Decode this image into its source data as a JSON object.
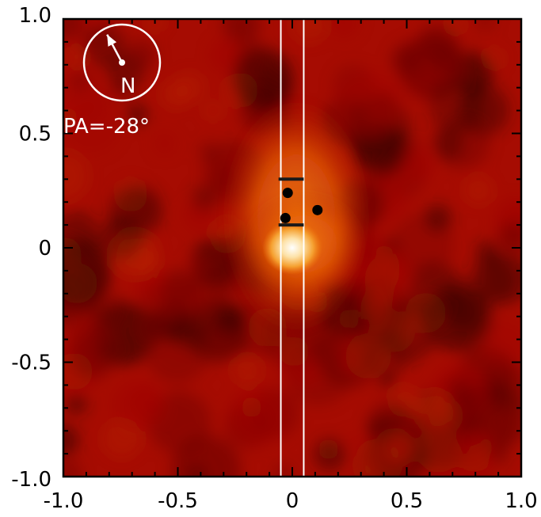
{
  "chart_data": {
    "type": "heatmap",
    "xlim": [
      -1.0,
      1.0
    ],
    "ylim": [
      -1.0,
      1.0
    ],
    "x_ticks": [
      -1.0,
      -0.5,
      0,
      0.5,
      1.0
    ],
    "y_ticks": [
      -1.0,
      -0.5,
      0,
      0.5,
      1.0
    ],
    "x_tick_labels": [
      "-1.0",
      "-0.5",
      "0",
      "0.5",
      "1.0"
    ],
    "y_tick_labels": [
      "-1.0",
      "-0.5",
      "0",
      "0.5",
      "1.0"
    ],
    "colormap": [
      "#2a0000",
      "#6a0000",
      "#a00a00",
      "#d23a00",
      "#f07a10",
      "#fbbd5a",
      "#ffffff"
    ],
    "peak": {
      "x": 0.0,
      "y": 0.0
    },
    "slit": {
      "x_min": -0.05,
      "x_max": 0.05,
      "color": "#ffffff"
    },
    "points": [
      {
        "x": -0.02,
        "y": 0.24
      },
      {
        "x": -0.03,
        "y": 0.13
      },
      {
        "x": 0.11,
        "y": 0.165
      }
    ],
    "bars": [
      {
        "x1": -0.06,
        "x2": 0.05,
        "y": 0.3
      },
      {
        "x1": -0.06,
        "x2": 0.05,
        "y": 0.1
      }
    ],
    "compass": {
      "label": "N",
      "angle_label": "PA=-28°",
      "pa_deg": -28
    }
  }
}
